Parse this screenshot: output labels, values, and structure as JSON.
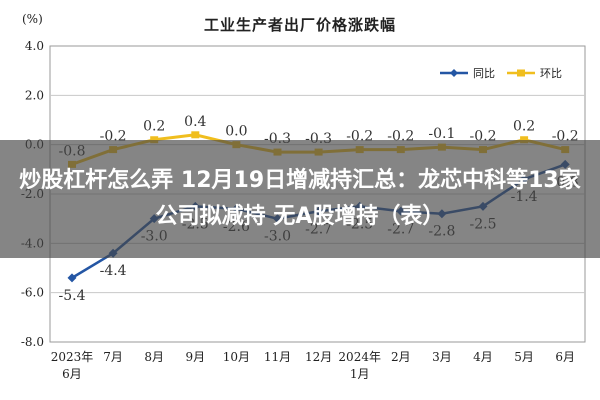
{
  "overlay": {
    "headline": "炒股杠杆怎么弄 12月19日增减持汇总：龙芯中科等13家公司拟减持 无A股增持（表）"
  },
  "chart_data": {
    "type": "line",
    "title": "工业生产者出厂价格涨跌幅",
    "ylabel": "(%)",
    "xlabel": "",
    "categories": [
      "2023年\n6月",
      "7月",
      "8月",
      "9月",
      "10月",
      "11月",
      "12月",
      "2024年\n1月",
      "2月",
      "3月",
      "4月",
      "5月",
      "6月"
    ],
    "yticks": [
      "4.0",
      "2.0",
      "0.0",
      "-2.0",
      "-4.0",
      "-6.0",
      "-8.0"
    ],
    "ylim": [
      -8,
      4
    ],
    "grid": true,
    "legend_position": "top-right",
    "series": [
      {
        "name": "同比",
        "color": "#2456a4",
        "values": [
          -5.4,
          -4.4,
          -3.0,
          -2.5,
          -2.6,
          -3.0,
          -2.7,
          -2.5,
          -2.7,
          -2.8,
          -2.5,
          -1.4,
          -0.8
        ],
        "labels": [
          "-5.4",
          "-4.4",
          "-3.0",
          "-2.5",
          "-2.6",
          "-3.0",
          "-2.7",
          "-2.5",
          "-2.7",
          "-2.8",
          "-2.5",
          "-1.4",
          "-0.8"
        ]
      },
      {
        "name": "环比",
        "color": "#f0be1e",
        "values": [
          -0.8,
          -0.2,
          0.2,
          0.4,
          0.0,
          -0.3,
          -0.3,
          -0.2,
          -0.2,
          -0.1,
          -0.2,
          0.2,
          -0.2
        ],
        "labels": [
          "-0.8",
          "-0.2",
          "0.2",
          "0.4",
          "0.0",
          "-0.3",
          "-0.3",
          "-0.2",
          "-0.2",
          "-0.1",
          "-0.2",
          "0.2",
          "-0.2"
        ]
      }
    ]
  }
}
